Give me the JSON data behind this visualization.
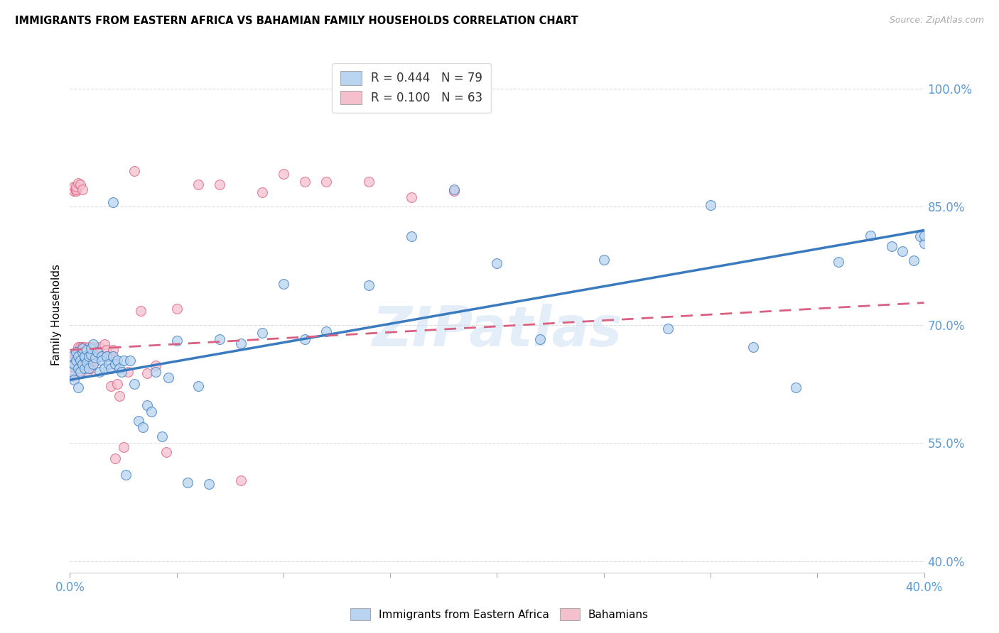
{
  "title": "IMMIGRANTS FROM EASTERN AFRICA VS BAHAMIAN FAMILY HOUSEHOLDS CORRELATION CHART",
  "source": "Source: ZipAtlas.com",
  "ylabel": "Family Households",
  "ytick_labels": [
    "100.0%",
    "85.0%",
    "70.0%",
    "55.0%",
    "40.0%"
  ],
  "ytick_values": [
    1.0,
    0.85,
    0.7,
    0.55,
    0.4
  ],
  "xmin": 0.0,
  "xmax": 0.4,
  "ymin": 0.385,
  "ymax": 1.04,
  "blue_R": 0.444,
  "blue_N": 79,
  "pink_R": 0.1,
  "pink_N": 63,
  "blue_color": "#b8d4f0",
  "blue_line_color": "#3a7bbf",
  "pink_color": "#f5c0ce",
  "pink_line_color": "#d96080",
  "blue_scatter_x": [
    0.001,
    0.001,
    0.002,
    0.002,
    0.003,
    0.003,
    0.004,
    0.004,
    0.004,
    0.005,
    0.005,
    0.006,
    0.006,
    0.006,
    0.007,
    0.007,
    0.007,
    0.008,
    0.008,
    0.009,
    0.009,
    0.01,
    0.01,
    0.011,
    0.011,
    0.012,
    0.013,
    0.014,
    0.015,
    0.015,
    0.016,
    0.017,
    0.018,
    0.019,
    0.02,
    0.02,
    0.021,
    0.022,
    0.023,
    0.024,
    0.025,
    0.026,
    0.028,
    0.03,
    0.032,
    0.034,
    0.036,
    0.038,
    0.04,
    0.043,
    0.046,
    0.05,
    0.055,
    0.06,
    0.065,
    0.07,
    0.08,
    0.09,
    0.1,
    0.11,
    0.12,
    0.14,
    0.16,
    0.18,
    0.2,
    0.22,
    0.25,
    0.28,
    0.3,
    0.32,
    0.34,
    0.36,
    0.375,
    0.385,
    0.39,
    0.395,
    0.398,
    0.4,
    0.4
  ],
  "blue_scatter_y": [
    0.64,
    0.66,
    0.65,
    0.63,
    0.655,
    0.665,
    0.645,
    0.62,
    0.66,
    0.655,
    0.64,
    0.65,
    0.665,
    0.67,
    0.658,
    0.645,
    0.66,
    0.652,
    0.668,
    0.66,
    0.645,
    0.662,
    0.67,
    0.675,
    0.65,
    0.658,
    0.665,
    0.64,
    0.66,
    0.655,
    0.645,
    0.66,
    0.65,
    0.645,
    0.66,
    0.856,
    0.65,
    0.655,
    0.645,
    0.64,
    0.655,
    0.51,
    0.655,
    0.625,
    0.578,
    0.57,
    0.598,
    0.59,
    0.64,
    0.558,
    0.633,
    0.68,
    0.5,
    0.622,
    0.498,
    0.682,
    0.676,
    0.69,
    0.752,
    0.682,
    0.692,
    0.75,
    0.812,
    0.872,
    0.778,
    0.682,
    0.783,
    0.695,
    0.852,
    0.672,
    0.62,
    0.78,
    0.813,
    0.8,
    0.793,
    0.782,
    0.812,
    0.803,
    0.813
  ],
  "pink_scatter_x": [
    0.001,
    0.001,
    0.001,
    0.002,
    0.002,
    0.002,
    0.003,
    0.003,
    0.003,
    0.003,
    0.004,
    0.004,
    0.004,
    0.004,
    0.005,
    0.005,
    0.005,
    0.005,
    0.006,
    0.006,
    0.006,
    0.006,
    0.007,
    0.007,
    0.007,
    0.008,
    0.008,
    0.008,
    0.009,
    0.009,
    0.01,
    0.01,
    0.011,
    0.012,
    0.013,
    0.014,
    0.015,
    0.016,
    0.017,
    0.018,
    0.019,
    0.02,
    0.021,
    0.022,
    0.023,
    0.025,
    0.027,
    0.03,
    0.033,
    0.036,
    0.04,
    0.045,
    0.05,
    0.06,
    0.07,
    0.08,
    0.09,
    0.1,
    0.11,
    0.12,
    0.14,
    0.16,
    0.18
  ],
  "pink_scatter_y": [
    0.66,
    0.648,
    0.635,
    0.87,
    0.875,
    0.658,
    0.87,
    0.872,
    0.875,
    0.66,
    0.66,
    0.672,
    0.88,
    0.638,
    0.66,
    0.672,
    0.642,
    0.878,
    0.872,
    0.66,
    0.672,
    0.648,
    0.66,
    0.672,
    0.65,
    0.65,
    0.655,
    0.64,
    0.66,
    0.672,
    0.645,
    0.665,
    0.672,
    0.655,
    0.665,
    0.672,
    0.66,
    0.675,
    0.668,
    0.66,
    0.622,
    0.668,
    0.53,
    0.625,
    0.61,
    0.545,
    0.64,
    0.895,
    0.718,
    0.638,
    0.648,
    0.538,
    0.72,
    0.878,
    0.878,
    0.502,
    0.868,
    0.892,
    0.882,
    0.882,
    0.882,
    0.862,
    0.87
  ],
  "watermark": "ZIPatlas",
  "legend_label_blue": "R = 0.444   N = 79",
  "legend_label_pink": "R = 0.100   N = 63",
  "bottom_legend_blue": "Immigrants from Eastern Africa",
  "bottom_legend_pink": "Bahamians",
  "grid_color": "#dddddd",
  "tick_color": "#5b9bd5",
  "xtick_major": [
    0.0,
    0.05,
    0.1,
    0.15,
    0.2,
    0.25,
    0.3,
    0.35,
    0.4
  ],
  "xlabel_show_only": [
    0.0,
    0.4
  ]
}
